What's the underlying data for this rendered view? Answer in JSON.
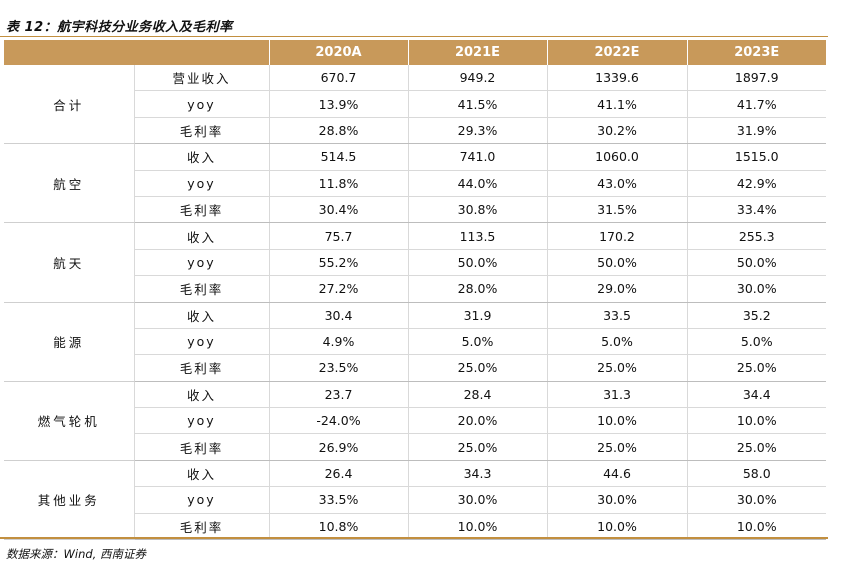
{
  "title": "表 12：航宇科技分业务收入及毛利率",
  "header": [
    "",
    "",
    "2020A",
    "2021E",
    "2022E",
    "2023E"
  ],
  "groups": [
    {
      "name": "合计",
      "rows": [
        {
          "metric": "营业收入",
          "values": [
            "670.7",
            "949.2",
            "1339.6",
            "1897.9"
          ]
        },
        {
          "metric": "yoy",
          "values": [
            "13.9%",
            "41.5%",
            "41.1%",
            "41.7%"
          ]
        },
        {
          "metric": "毛利率",
          "values": [
            "28.8%",
            "29.3%",
            "30.2%",
            "31.9%"
          ]
        }
      ]
    },
    {
      "name": "航空",
      "rows": [
        {
          "metric": "收入",
          "values": [
            "514.5",
            "741.0",
            "1060.0",
            "1515.0"
          ]
        },
        {
          "metric": "yoy",
          "values": [
            "11.8%",
            "44.0%",
            "43.0%",
            "42.9%"
          ]
        },
        {
          "metric": "毛利率",
          "values": [
            "30.4%",
            "30.8%",
            "31.5%",
            "33.4%"
          ]
        }
      ]
    },
    {
      "name": "航天",
      "rows": [
        {
          "metric": "收入",
          "values": [
            "75.7",
            "113.5",
            "170.2",
            "255.3"
          ]
        },
        {
          "metric": "yoy",
          "values": [
            "55.2%",
            "50.0%",
            "50.0%",
            "50.0%"
          ]
        },
        {
          "metric": "毛利率",
          "values": [
            "27.2%",
            "28.0%",
            "29.0%",
            "30.0%"
          ]
        }
      ]
    },
    {
      "name": "能源",
      "rows": [
        {
          "metric": "收入",
          "values": [
            "30.4",
            "31.9",
            "33.5",
            "35.2"
          ]
        },
        {
          "metric": "yoy",
          "values": [
            "4.9%",
            "5.0%",
            "5.0%",
            "5.0%"
          ]
        },
        {
          "metric": "毛利率",
          "values": [
            "23.5%",
            "25.0%",
            "25.0%",
            "25.0%"
          ]
        }
      ]
    },
    {
      "name": "燃气轮机",
      "rows": [
        {
          "metric": "收入",
          "values": [
            "23.7",
            "28.4",
            "31.3",
            "34.4"
          ]
        },
        {
          "metric": "yoy",
          "values": [
            "-24.0%",
            "20.0%",
            "10.0%",
            "10.0%"
          ]
        },
        {
          "metric": "毛利率",
          "values": [
            "26.9%",
            "25.0%",
            "25.0%",
            "25.0%"
          ]
        }
      ]
    },
    {
      "name": "其他业务",
      "rows": [
        {
          "metric": "收入",
          "values": [
            "26.4",
            "34.3",
            "44.6",
            "58.0"
          ]
        },
        {
          "metric": "yoy",
          "values": [
            "33.5%",
            "30.0%",
            "30.0%",
            "30.0%"
          ]
        },
        {
          "metric": "毛利率",
          "values": [
            "10.8%",
            "10.0%",
            "10.0%",
            "10.0%"
          ]
        }
      ]
    }
  ],
  "source": "数据来源：Wind, 西南证券"
}
